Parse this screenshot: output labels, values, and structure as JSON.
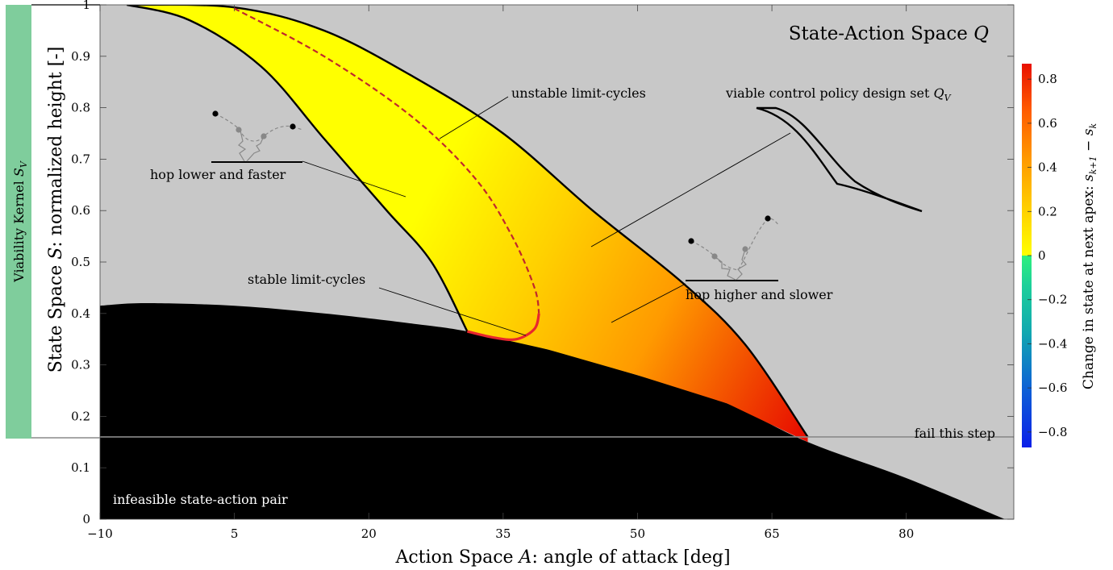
{
  "chart_data": {
    "type": "heatmap",
    "title": "State-Action Space Q",
    "xlabel": "Action Space A: angle of attack [deg]",
    "ylabel": "State Space S: normalized height [-]",
    "xlim": [
      -10,
      92
    ],
    "ylim": [
      0,
      1
    ],
    "xticks": [
      -10,
      5,
      20,
      35,
      50,
      65,
      80
    ],
    "xtick_labels": [
      "−10",
      "5",
      "20",
      "35",
      "50",
      "65",
      "80"
    ],
    "yticks": [
      0,
      0.1,
      0.2,
      0.3,
      0.4,
      0.5,
      0.6,
      0.7,
      0.8,
      0.9,
      1
    ],
    "ytick_labels": [
      "0",
      "0.1",
      "0.2",
      "0.3",
      "0.4",
      "0.5",
      "0.6",
      "0.7",
      "0.8",
      "0.9",
      "1"
    ],
    "colorbar": {
      "label": "Change in state at next apex: s",
      "label_sub1": "k+1",
      "label_mid": " − s",
      "label_sub2": "k",
      "range": [
        -0.87,
        0.87
      ],
      "ticks": [
        -0.8,
        -0.6,
        -0.4,
        -0.2,
        0,
        0.2,
        0.4,
        0.6,
        0.8
      ],
      "tick_labels": [
        "−0.8",
        "−0.6",
        "−0.4",
        "−0.2",
        "0",
        "0.2",
        "0.4",
        "0.6",
        "0.8"
      ],
      "colormap_negative": [
        "#0b1fe8",
        "#0d5fd6",
        "#11a8b0",
        "#1ccf9a",
        "#2ef07d"
      ],
      "colormap_positive": [
        "#ffff00",
        "#ffd000",
        "#ff9a00",
        "#ff5a00",
        "#e81000"
      ]
    },
    "viability_kernel": {
      "label": "Viability Kernel",
      "symbol": "S",
      "sub": "V",
      "ylim": [
        0.16,
        1
      ]
    },
    "fail_threshold_y": 0.16,
    "regions": {
      "infeasible_boundary": [
        [
          -10,
          0.415
        ],
        [
          -5,
          0.42
        ],
        [
          5,
          0.415
        ],
        [
          15,
          0.4
        ],
        [
          25,
          0.38
        ],
        [
          31,
          0.365
        ],
        [
          40,
          0.33
        ],
        [
          50,
          0.28
        ],
        [
          60,
          0.225
        ],
        [
          69,
          0.15
        ],
        [
          80,
          0.08
        ],
        [
          91,
          0
        ]
      ],
      "viable_outer_upper": [
        [
          -7,
          1
        ],
        [
          5,
          0.995
        ],
        [
          15,
          0.95
        ],
        [
          25,
          0.86
        ],
        [
          35,
          0.75
        ],
        [
          45,
          0.6
        ],
        [
          55,
          0.46
        ],
        [
          62,
          0.34
        ],
        [
          69,
          0.16
        ]
      ],
      "viable_outer_lower": [
        [
          -7,
          1
        ],
        [
          0,
          0.97
        ],
        [
          8,
          0.88
        ],
        [
          15,
          0.74
        ],
        [
          22,
          0.6
        ],
        [
          27,
          0.5
        ],
        [
          31,
          0.365
        ]
      ],
      "unstable_limit_cycle": [
        [
          5,
          0.993
        ],
        [
          15,
          0.9
        ],
        [
          25,
          0.78
        ],
        [
          32,
          0.66
        ],
        [
          36,
          0.55
        ],
        [
          38.5,
          0.45
        ],
        [
          39,
          0.4
        ],
        [
          38.5,
          0.37
        ],
        [
          36.5,
          0.35
        ],
        [
          34,
          0.353
        ]
      ],
      "stable_limit_cycle": [
        [
          31,
          0.365
        ],
        [
          34,
          0.353
        ],
        [
          36.5,
          0.35
        ],
        [
          38.5,
          0.37
        ],
        [
          39,
          0.4
        ]
      ]
    },
    "annotations": [
      "unstable limit-cycles",
      "viable control policy design set Q",
      "hop lower and faster",
      "stable limit-cycles",
      "hop higher and slower",
      "fail this step",
      "infeasible state-action pair"
    ],
    "grid": false,
    "legend": "none"
  },
  "text": {
    "title_main": "State-Action Space ",
    "title_sym": "Q",
    "xlabel_main": "Action Space ",
    "xlabel_sym": "A",
    "xlabel_rest": ": angle of attack [deg]",
    "ylabel_main": "State Space ",
    "ylabel_sym": "S",
    "ylabel_rest": ": normalized height [-]",
    "kernel_main": "Viability Kernel ",
    "kernel_sym": "S",
    "kernel_sub": "V",
    "ann_unstable": "unstable limit-cycles",
    "ann_policy_main": "viable control policy design set ",
    "ann_policy_sym": "Q",
    "ann_policy_sub": "V",
    "ann_lower": "hop lower and faster",
    "ann_stable": "stable limit-cycles",
    "ann_higher": "hop higher and slower",
    "ann_fail": "fail this step",
    "ann_infeasible": "infeasible state-action pair",
    "cb_label_main": "Change in state at next apex: ",
    "cb_label_s1": "s",
    "cb_label_sub1": "k+1",
    "cb_label_mid": " − ",
    "cb_label_s2": "s",
    "cb_label_sub2": "k"
  },
  "colors": {
    "background": "#c8c8c8",
    "infeasible": "#000000",
    "kernel_bar": "#7fcd9c",
    "unstable_line": "#c0272d",
    "stable_line": "#e8262d"
  }
}
